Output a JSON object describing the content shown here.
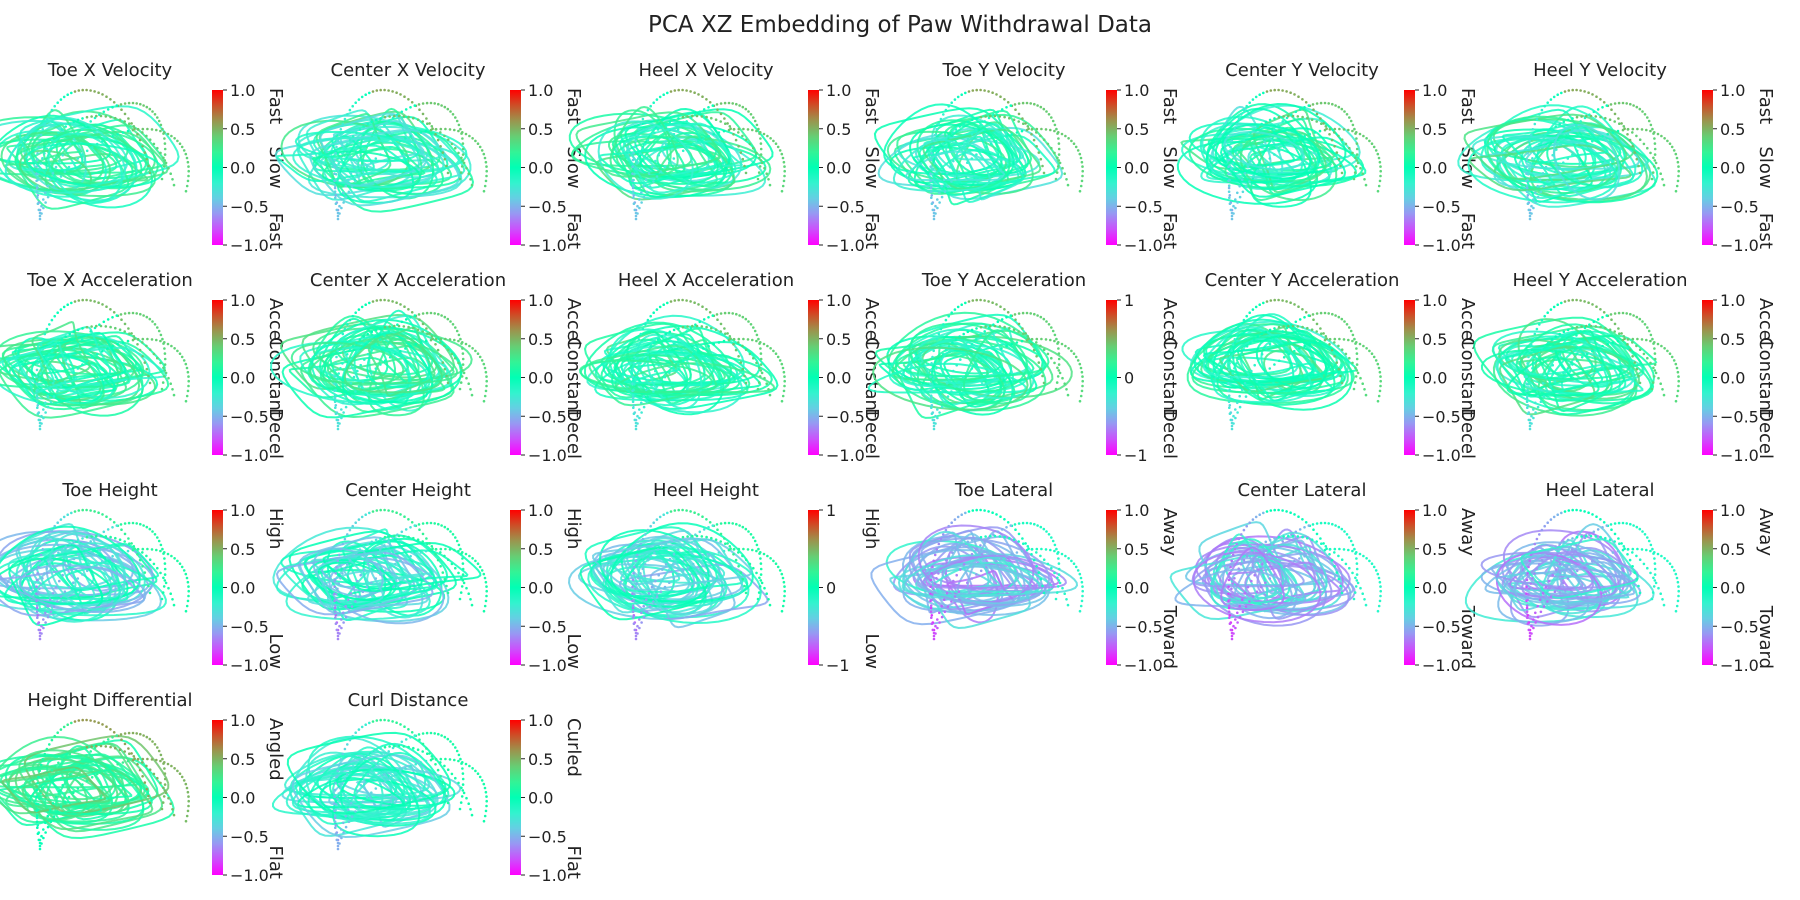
{
  "figure_title": "PCA XZ Embedding of Paw Withdrawal Data",
  "colormap": "rainbow",
  "chart_data": [
    {
      "type": "scatter",
      "title": "Toe X Velocity",
      "clim": [
        -1,
        1
      ],
      "cbar_ticks": [
        "1.0",
        "0.5",
        "0.0",
        "−0.5",
        "−1.0"
      ],
      "cbar_side_labels": [
        "Fast",
        "Slow",
        "Fast"
      ],
      "color_mode": "velocity"
    },
    {
      "type": "scatter",
      "title": "Center X Velocity",
      "clim": [
        -1,
        1
      ],
      "cbar_ticks": [
        "1.0",
        "0.5",
        "0.0",
        "−0.5",
        "−1.0"
      ],
      "cbar_side_labels": [
        "Fast",
        "Slow",
        "Fast"
      ],
      "color_mode": "velocity"
    },
    {
      "type": "scatter",
      "title": "Heel X Velocity",
      "clim": [
        -1,
        1
      ],
      "cbar_ticks": [
        "1.0",
        "0.5",
        "0.0",
        "−0.5",
        "−1.0"
      ],
      "cbar_side_labels": [
        "Fast",
        "Slow",
        "Fast"
      ],
      "color_mode": "velocity"
    },
    {
      "type": "scatter",
      "title": "Toe Y Velocity",
      "clim": [
        -1,
        1
      ],
      "cbar_ticks": [
        "1.0",
        "0.5",
        "0.0",
        "−0.5",
        "−1.0"
      ],
      "cbar_side_labels": [
        "Fast",
        "Slow",
        "Fast"
      ],
      "color_mode": "velocity"
    },
    {
      "type": "scatter",
      "title": "Center Y Velocity",
      "clim": [
        -1,
        1
      ],
      "cbar_ticks": [
        "1.0",
        "0.5",
        "0.0",
        "−0.5",
        "−1.0"
      ],
      "cbar_side_labels": [
        "Fast",
        "Slow",
        "Fast"
      ],
      "color_mode": "velocity"
    },
    {
      "type": "scatter",
      "title": "Heel Y Velocity",
      "clim": [
        -1,
        1
      ],
      "cbar_ticks": [
        "1.0",
        "0.5",
        "0.0",
        "−0.5",
        "−1.0"
      ],
      "cbar_side_labels": [
        "Fast",
        "Slow",
        "Fast"
      ],
      "color_mode": "velocity"
    },
    {
      "type": "scatter",
      "title": "Toe X Acceleration",
      "clim": [
        -1,
        1
      ],
      "cbar_ticks": [
        "1.0",
        "0.5",
        "0.0",
        "−0.5",
        "−1.0"
      ],
      "cbar_side_labels": [
        "Accel",
        "Constant",
        "Decel"
      ],
      "color_mode": "accel"
    },
    {
      "type": "scatter",
      "title": "Center X Acceleration",
      "clim": [
        -1,
        1
      ],
      "cbar_ticks": [
        "1.0",
        "0.5",
        "0.0",
        "−0.5",
        "−1.0"
      ],
      "cbar_side_labels": [
        "Accel",
        "Constant",
        "Decel"
      ],
      "color_mode": "accel"
    },
    {
      "type": "scatter",
      "title": "Heel X Acceleration",
      "clim": [
        -1,
        1
      ],
      "cbar_ticks": [
        "1.0",
        "0.5",
        "0.0",
        "−0.5",
        "−1.0"
      ],
      "cbar_side_labels": [
        "Accel",
        "Constant",
        "Decel"
      ],
      "color_mode": "accel"
    },
    {
      "type": "scatter",
      "title": "Toe Y Acceleration",
      "clim": [
        -1,
        1
      ],
      "cbar_ticks": [
        "1",
        "",
        "0",
        "",
        "−1"
      ],
      "cbar_side_labels": [
        "Accel",
        "Constant",
        "Decel"
      ],
      "color_mode": "accel"
    },
    {
      "type": "scatter",
      "title": "Center Y Acceleration",
      "clim": [
        -1,
        1
      ],
      "cbar_ticks": [
        "1.0",
        "0.5",
        "0.0",
        "−0.5",
        "−1.0"
      ],
      "cbar_side_labels": [
        "Accel",
        "Constant",
        "Decel"
      ],
      "color_mode": "accel"
    },
    {
      "type": "scatter",
      "title": "Heel Y Acceleration",
      "clim": [
        -1,
        1
      ],
      "cbar_ticks": [
        "1.0",
        "0.5",
        "0.0",
        "−0.5",
        "−1.0"
      ],
      "cbar_side_labels": [
        "Accel",
        "Constant",
        "Decel"
      ],
      "color_mode": "accel"
    },
    {
      "type": "scatter",
      "title": "Toe Height",
      "clim": [
        -1,
        1
      ],
      "cbar_ticks": [
        "1.0",
        "0.5",
        "0.0",
        "−0.5",
        "−1.0"
      ],
      "cbar_side_labels": [
        "High",
        "",
        "Low"
      ],
      "color_mode": "height"
    },
    {
      "type": "scatter",
      "title": "Center Height",
      "clim": [
        -1,
        1
      ],
      "cbar_ticks": [
        "1.0",
        "0.5",
        "0.0",
        "−0.5",
        "−1.0"
      ],
      "cbar_side_labels": [
        "High",
        "",
        "Low"
      ],
      "color_mode": "height"
    },
    {
      "type": "scatter",
      "title": "Heel Height",
      "clim": [
        -1,
        1
      ],
      "cbar_ticks": [
        "1",
        "",
        "0",
        "",
        "−1"
      ],
      "cbar_side_labels": [
        "High",
        "",
        "Low"
      ],
      "color_mode": "height"
    },
    {
      "type": "scatter",
      "title": "Toe Lateral",
      "clim": [
        -1,
        1
      ],
      "cbar_ticks": [
        "1.0",
        "0.5",
        "0.0",
        "−0.5",
        "−1.0"
      ],
      "cbar_side_labels": [
        "Away",
        "",
        "Toward"
      ],
      "color_mode": "lateral"
    },
    {
      "type": "scatter",
      "title": "Center Lateral",
      "clim": [
        -1,
        1
      ],
      "cbar_ticks": [
        "1.0",
        "0.5",
        "0.0",
        "−0.5",
        "−1.0"
      ],
      "cbar_side_labels": [
        "Away",
        "",
        "Toward"
      ],
      "color_mode": "lateral"
    },
    {
      "type": "scatter",
      "title": "Heel Lateral",
      "clim": [
        -1,
        1
      ],
      "cbar_ticks": [
        "1.0",
        "0.5",
        "0.0",
        "−0.5",
        "−1.0"
      ],
      "cbar_side_labels": [
        "Away",
        "",
        "Toward"
      ],
      "color_mode": "lateral"
    },
    {
      "type": "scatter",
      "title": "Height Differential",
      "clim": [
        -1,
        1
      ],
      "cbar_ticks": [
        "1.0",
        "0.5",
        "0.0",
        "−0.5",
        "−1.0"
      ],
      "cbar_side_labels": [
        "Angled",
        "",
        "Flat"
      ],
      "color_mode": "diff"
    },
    {
      "type": "scatter",
      "title": "Curl Distance",
      "clim": [
        -1,
        1
      ],
      "cbar_ticks": [
        "1.0",
        "0.5",
        "0.0",
        "−0.5",
        "−1.0"
      ],
      "cbar_side_labels": [
        "Curled",
        "",
        "Flat"
      ],
      "color_mode": "curl"
    }
  ]
}
